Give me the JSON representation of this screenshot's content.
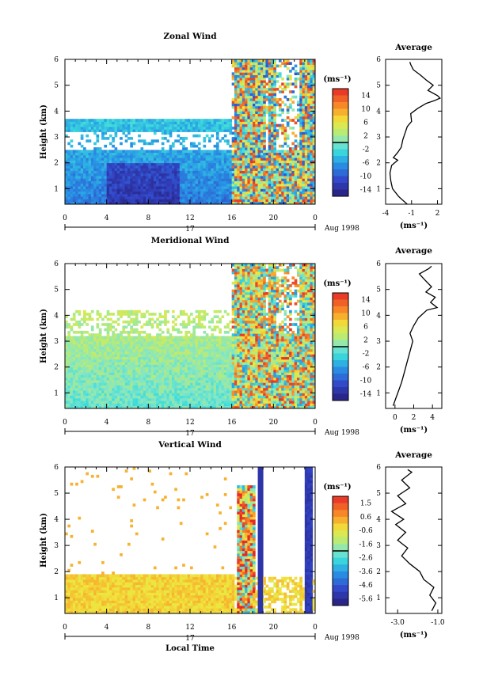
{
  "chart_data": [
    {
      "type": "heatmap",
      "title": "Zonal Wind",
      "ylabel": "Height (km)",
      "xticks": [
        "0",
        "4",
        "8",
        "12",
        "16",
        "20",
        "0"
      ],
      "yticks": [
        "1",
        "2",
        "3",
        "4",
        "5",
        "6"
      ],
      "date_label": "17",
      "month_label": "Aug 1998",
      "xlim": [
        0,
        24
      ],
      "ylim": [
        0.4,
        6
      ],
      "colorbar": {
        "unit": "(ms⁻¹)",
        "ticks": [
          "14",
          "10",
          "6",
          "2",
          "-2",
          "-6",
          "-10",
          "-14"
        ],
        "range": [
          -16,
          16
        ]
      },
      "average": {
        "title": "Average",
        "xlabel": "(ms⁻¹)",
        "xticks": [
          "-4",
          "-1",
          "2"
        ],
        "xlim": [
          -4,
          2.5
        ],
        "profile": [
          [
            -1.5,
            0.4
          ],
          [
            -2.5,
            0.7
          ],
          [
            -3.2,
            1.0
          ],
          [
            -3.4,
            1.3
          ],
          [
            -3.5,
            1.6
          ],
          [
            -3.3,
            1.9
          ],
          [
            -2.6,
            2.1
          ],
          [
            -3.1,
            2.2
          ],
          [
            -2.6,
            2.4
          ],
          [
            -2.2,
            2.6
          ],
          [
            -2.0,
            2.9
          ],
          [
            -1.8,
            3.1
          ],
          [
            -1.5,
            3.4
          ],
          [
            -1.0,
            3.6
          ],
          [
            -1.1,
            3.9
          ],
          [
            -0.3,
            4.1
          ],
          [
            0.7,
            4.3
          ],
          [
            1.6,
            4.4
          ],
          [
            2.3,
            4.5
          ],
          [
            2.0,
            4.6
          ],
          [
            0.9,
            4.8
          ],
          [
            1.5,
            5.0
          ],
          [
            0.7,
            5.2
          ],
          [
            0.0,
            5.4
          ],
          [
            -0.8,
            5.6
          ],
          [
            -1.1,
            5.8
          ],
          [
            -1.2,
            5.9
          ]
        ]
      }
    },
    {
      "type": "heatmap",
      "title": "Meridional Wind",
      "ylabel": "Height (km)",
      "xticks": [
        "0",
        "4",
        "8",
        "12",
        "16",
        "20",
        "0"
      ],
      "yticks": [
        "1",
        "2",
        "3",
        "4",
        "5",
        "6"
      ],
      "date_label": "17",
      "month_label": "Aug 1998",
      "xlim": [
        0,
        24
      ],
      "ylim": [
        0.4,
        6
      ],
      "colorbar": {
        "unit": "(ms⁻¹)",
        "ticks": [
          "14",
          "10",
          "6",
          "2",
          "-2",
          "-6",
          "-10",
          "-14"
        ],
        "range": [
          -16,
          16
        ]
      },
      "average": {
        "title": "Average",
        "xlabel": "(ms⁻¹)",
        "xticks": [
          "0",
          "2",
          "4"
        ],
        "xlim": [
          -1,
          5
        ],
        "profile": [
          [
            -0.2,
            0.5
          ],
          [
            0.1,
            0.8
          ],
          [
            0.4,
            1.1
          ],
          [
            0.7,
            1.4
          ],
          [
            1.0,
            1.8
          ],
          [
            1.3,
            2.2
          ],
          [
            1.6,
            2.6
          ],
          [
            1.9,
            3.0
          ],
          [
            1.6,
            3.3
          ],
          [
            2.0,
            3.6
          ],
          [
            2.5,
            3.9
          ],
          [
            3.4,
            4.2
          ],
          [
            4.5,
            4.3
          ],
          [
            3.8,
            4.5
          ],
          [
            4.3,
            4.7
          ],
          [
            3.3,
            4.9
          ],
          [
            3.9,
            5.1
          ],
          [
            3.1,
            5.4
          ],
          [
            2.6,
            5.6
          ],
          [
            3.6,
            5.8
          ],
          [
            3.9,
            5.9
          ]
        ]
      }
    },
    {
      "type": "heatmap",
      "title": "Vertical Wind",
      "ylabel": "Height (km)",
      "xlabel": "Local Time",
      "xticks": [
        "0",
        "4",
        "8",
        "12",
        "16",
        "20",
        "0"
      ],
      "yticks": [
        "1",
        "2",
        "3",
        "4",
        "5",
        "6"
      ],
      "date_label": "17",
      "month_label": "Aug 1998",
      "xlim": [
        0,
        24
      ],
      "ylim": [
        0.4,
        6
      ],
      "colorbar": {
        "unit": "(ms⁻¹)",
        "ticks": [
          "1.5",
          "0.6",
          "-0.6",
          "-1.6",
          "-2.6",
          "-3.6",
          "-4.6",
          "-5.6"
        ],
        "range": [
          -6.1,
          2.0
        ]
      },
      "average": {
        "title": "Average",
        "xlabel": "(ms⁻¹)",
        "xticks": [
          "-3.0",
          "-1.0"
        ],
        "xlim": [
          -3.6,
          -0.8
        ],
        "profile": [
          [
            -1.3,
            0.5
          ],
          [
            -1.1,
            0.8
          ],
          [
            -1.4,
            1.1
          ],
          [
            -1.2,
            1.4
          ],
          [
            -1.7,
            1.7
          ],
          [
            -1.9,
            2.0
          ],
          [
            -2.4,
            2.3
          ],
          [
            -2.8,
            2.6
          ],
          [
            -2.5,
            2.9
          ],
          [
            -3.0,
            3.2
          ],
          [
            -2.6,
            3.5
          ],
          [
            -3.1,
            3.8
          ],
          [
            -2.7,
            4.0
          ],
          [
            -3.3,
            4.3
          ],
          [
            -2.6,
            4.6
          ],
          [
            -3.0,
            4.9
          ],
          [
            -2.4,
            5.2
          ],
          [
            -2.8,
            5.5
          ],
          [
            -2.3,
            5.8
          ],
          [
            -2.5,
            5.9
          ]
        ]
      }
    }
  ]
}
